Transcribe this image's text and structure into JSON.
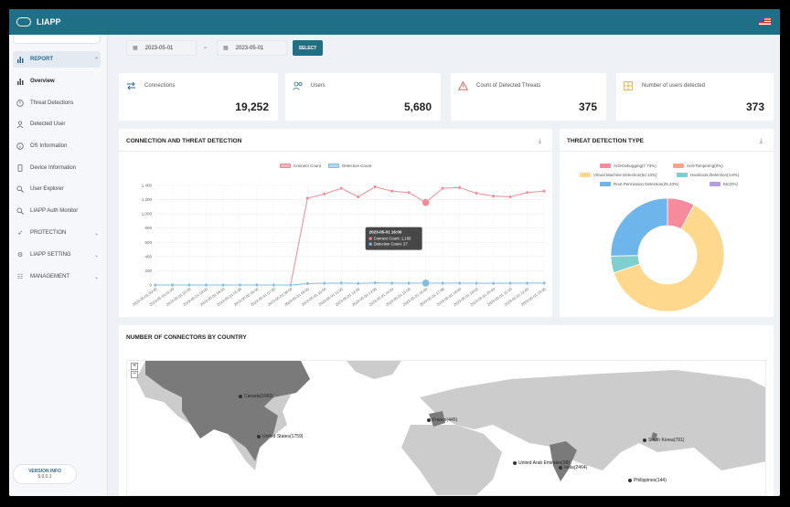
{
  "app": {
    "title": "LIAPP",
    "logo_text": "LIAPP"
  },
  "sidebar": {
    "items": [
      {
        "label": "REPORT",
        "icon": "bar-chart-icon"
      },
      {
        "label": "Overview",
        "icon": "bar-chart-icon"
      },
      {
        "label": "Threat Detections",
        "icon": "alert-circle-icon"
      },
      {
        "label": "Detected User",
        "icon": "user-icon"
      },
      {
        "label": "OS Information",
        "icon": "info-icon"
      },
      {
        "label": "Device Information",
        "icon": "device-icon"
      },
      {
        "label": "User Explorer",
        "icon": "search-icon"
      },
      {
        "label": "LIAPP Auth Monitor",
        "icon": "search-icon"
      },
      {
        "label": "PROTECTION",
        "icon": "rocket-icon"
      },
      {
        "label": "LIAPP SETTING",
        "icon": "gear-icon"
      },
      {
        "label": "MANAGEMENT",
        "icon": "sliders-icon"
      }
    ],
    "version_label": "VERSION INFO",
    "version": "5.0.0.1"
  },
  "filters": {
    "start_date": "2023-05-01",
    "end_date": "2023-05-01",
    "select_label": "SELECT"
  },
  "stats": [
    {
      "label": "Connections",
      "value": "19,252",
      "color": "#2a6a9a"
    },
    {
      "label": "Users",
      "value": "5,680",
      "color": "#2a6a9a"
    },
    {
      "label": "Count of Detected Threats",
      "value": "375",
      "color": "#d9534f"
    },
    {
      "label": "Number of users detected",
      "value": "373",
      "color": "#e8a33d"
    }
  ],
  "connection_panel": {
    "title": "CONNECTION AND THREAT DETECTION"
  },
  "threat_panel": {
    "title": "THREAT DETECTION TYPE"
  },
  "map_panel": {
    "title": "NUMBER OF CONNECTORS BY COUNTRY",
    "zoom_in": "+",
    "zoom_out": "−",
    "markers": [
      {
        "label": "Canada(1683)"
      },
      {
        "label": "United States(1759)"
      },
      {
        "label": "France(445)"
      },
      {
        "label": "United Arab Emirates(98)"
      },
      {
        "label": "India(2464)"
      },
      {
        "label": "South Korea(791)"
      },
      {
        "label": "Philippines(144)"
      }
    ]
  },
  "tooltip": {
    "title": "2023-05-01 16:00",
    "connect": "Connect Count: 1,160",
    "detect": "Detection Count: 27"
  },
  "chart_data": [
    {
      "type": "line",
      "title": "CONNECTION AND THREAT DETECTION",
      "ylim": [
        0,
        1400
      ],
      "yticks": [
        0,
        200,
        400,
        600,
        800,
        1000,
        1200,
        1400
      ],
      "ytick_labels": [
        "0",
        "200",
        "400",
        "600",
        "800",
        "1,000",
        "1,200",
        "1,400"
      ],
      "categories": [
        "2023-05-01 00:00",
        "2023-05-01 01:00",
        "2023-05-01 02:00",
        "2023-05-01 03:00",
        "2023-05-01 04:00",
        "2023-05-01 05:00",
        "2023-05-01 06:00",
        "2023-05-01 07:00",
        "2023-05-01 08:00",
        "2023-05-01 09:00",
        "2023-05-01 10:00",
        "2023-05-01 11:00",
        "2023-05-01 12:00",
        "2023-05-01 13:00",
        "2023-05-01 14:00",
        "2023-05-01 15:00",
        "2023-05-01 16:00",
        "2023-05-01 17:00",
        "2023-05-01 18:00",
        "2023-05-01 19:00",
        "2023-05-01 20:00",
        "2023-05-01 21:00",
        "2023-05-01 22:00",
        "2023-05-01 23:00"
      ],
      "series": [
        {
          "name": "Connect Count",
          "color": "#f08a99",
          "values": [
            0,
            0,
            0,
            0,
            0,
            0,
            0,
            0,
            0,
            1220,
            1280,
            1360,
            1240,
            1380,
            1320,
            1300,
            1160,
            1360,
            1370,
            1290,
            1250,
            1240,
            1300,
            1320
          ]
        },
        {
          "name": "Detection Count",
          "color": "#7fbde8",
          "values": [
            0,
            0,
            0,
            0,
            0,
            0,
            0,
            0,
            0,
            20,
            25,
            28,
            22,
            30,
            27,
            25,
            27,
            26,
            27,
            25,
            24,
            26,
            27,
            28
          ]
        }
      ]
    },
    {
      "type": "pie",
      "title": "THREAT DETECTION TYPE",
      "categories": [
        "Anti-Debugging(7.73%)",
        "Anti-Tampering(0%)",
        "Virtual Machine Detection(62.13%)",
        "Hacktools Detection(4.8%)",
        "Root Permission Detection(25.33%)",
        "Etc(0%)"
      ],
      "values": [
        7.73,
        0,
        62.13,
        4.8,
        25.33,
        0
      ],
      "colors": [
        "#f58b9c",
        "#f5a585",
        "#fdd88d",
        "#7fcfd0",
        "#6db5ea",
        "#b79be0"
      ]
    }
  ]
}
